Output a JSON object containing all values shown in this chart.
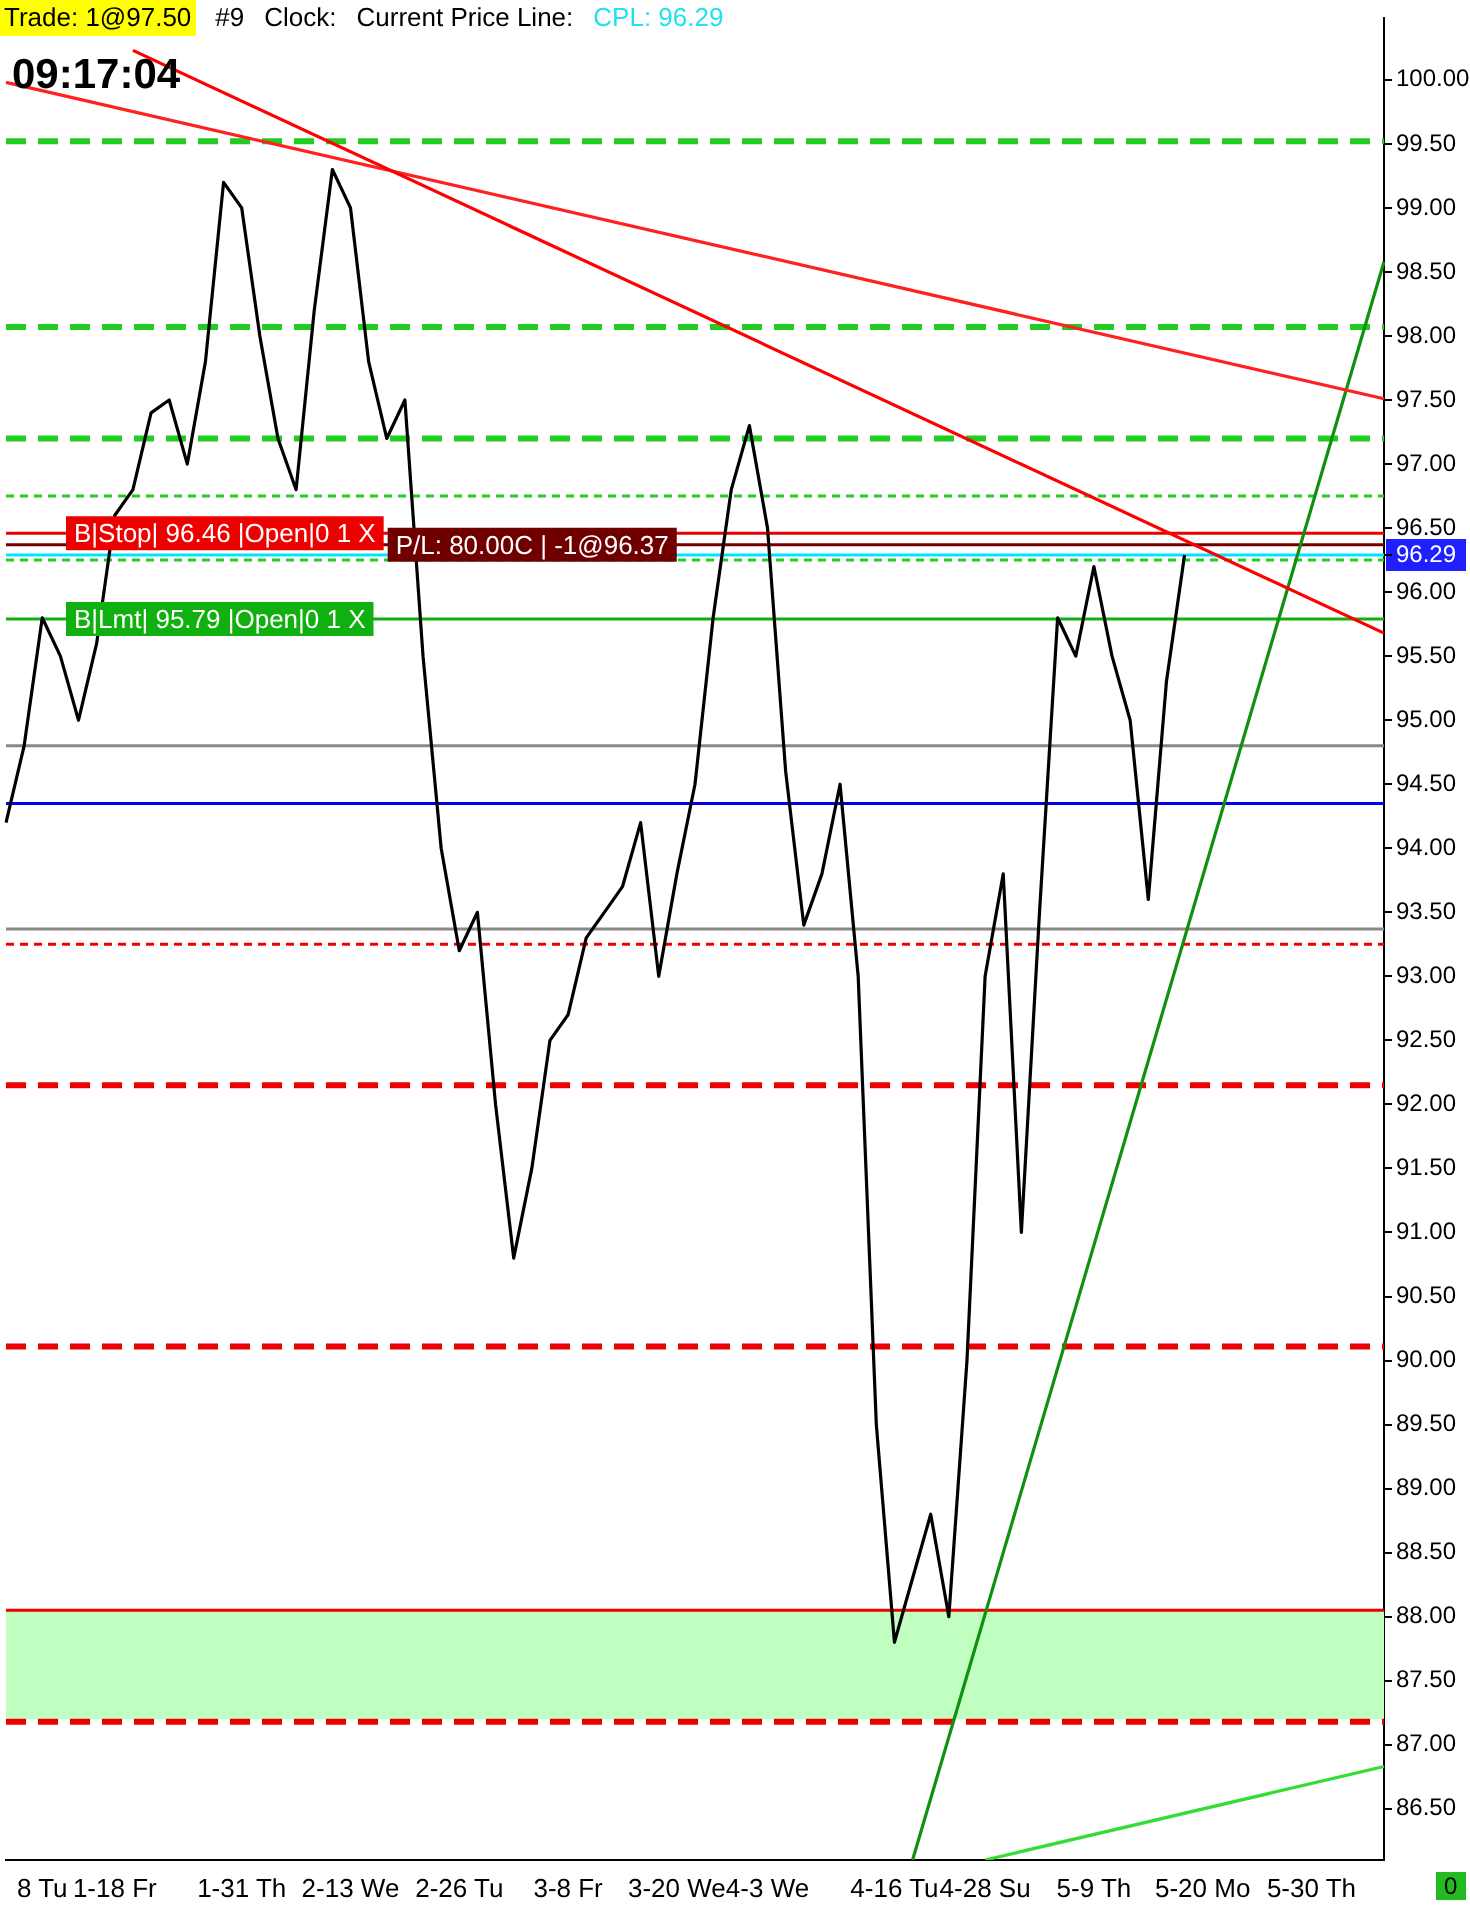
{
  "chart_data": {
    "type": "line",
    "annotations": [
      "Trade: 1@97.50",
      "#9",
      "Clock:",
      "Current Price Line:",
      "CPL: 96.29",
      "09:17:04",
      "0"
    ],
    "categories": [
      null,
      null,
      "8 Tu",
      null,
      null,
      null,
      "1-18 Fr",
      null,
      null,
      null,
      null,
      null,
      null,
      "1-31 Th",
      null,
      null,
      null,
      null,
      null,
      "2-13 We",
      null,
      null,
      null,
      null,
      null,
      "2-26 Tu",
      null,
      null,
      null,
      null,
      null,
      "3-8 Fr",
      null,
      null,
      null,
      null,
      null,
      "3-20 We",
      null,
      null,
      null,
      null,
      "4-3 We",
      null,
      null,
      null,
      null,
      null,
      null,
      "4-16 Tu",
      null,
      null,
      null,
      null,
      "4-28 Su",
      null,
      null,
      null,
      null,
      null,
      "5-9 Th",
      null,
      null,
      null,
      null,
      null,
      "5-20 Mo",
      null,
      null,
      null,
      null,
      null,
      "5-30 Th",
      null,
      null,
      null,
      null
    ],
    "series": [
      {
        "color": "#000000",
        "values": [
          94.2,
          94.8,
          95.8,
          95.5,
          95.0,
          95.6,
          96.6,
          96.8,
          97.4,
          97.5,
          97.0,
          97.8,
          99.2,
          99.0,
          98.0,
          97.2,
          96.8,
          98.2,
          99.3,
          99.0,
          97.8,
          97.2,
          97.5,
          95.5,
          94.0,
          93.2,
          93.5,
          92.0,
          90.8,
          91.5,
          92.5,
          92.7,
          93.3,
          93.5,
          93.7,
          94.2,
          93.0,
          93.8,
          94.5,
          95.8,
          96.8,
          97.3,
          96.5,
          94.6,
          93.4,
          93.8,
          94.5,
          93.0,
          89.5,
          87.8,
          88.3,
          88.8,
          88.0,
          90.0,
          93.0,
          93.8,
          91.0,
          93.5,
          95.8,
          95.5,
          96.2,
          95.5,
          95.0,
          93.6,
          95.3,
          96.29,
          null,
          null,
          null,
          null,
          null,
          null,
          null,
          null,
          null,
          null,
          null
        ]
      },
      {
        "type": "line",
        "color": "#ff0000",
        "values": [
          null,
          null,
          null,
          null,
          null,
          null,
          null,
          100.23,
          null,
          null,
          null,
          null,
          null,
          null,
          null,
          null,
          null,
          null,
          null,
          null,
          null,
          null,
          null,
          null,
          null,
          null,
          null,
          null,
          null,
          null,
          null,
          null,
          null,
          null,
          null,
          null,
          null,
          null,
          null,
          null,
          null,
          null,
          null,
          null,
          null,
          null,
          null,
          null,
          null,
          null,
          null,
          null,
          null,
          null,
          null,
          null,
          null,
          null,
          null,
          null,
          null,
          null,
          null,
          null,
          null,
          null,
          null,
          null,
          null,
          null,
          null,
          null,
          null,
          null,
          null,
          null,
          95.68
        ]
      },
      {
        "type": "line",
        "color": "#ff2020",
        "values": [
          99.98,
          null,
          null,
          null,
          null,
          null,
          null,
          null,
          null,
          null,
          null,
          null,
          null,
          null,
          null,
          null,
          null,
          null,
          null,
          null,
          null,
          null,
          null,
          null,
          null,
          null,
          null,
          null,
          null,
          null,
          null,
          null,
          null,
          null,
          null,
          null,
          null,
          null,
          null,
          null,
          null,
          null,
          null,
          null,
          null,
          null,
          null,
          null,
          null,
          null,
          null,
          null,
          null,
          null,
          null,
          null,
          null,
          null,
          null,
          null,
          null,
          null,
          null,
          null,
          null,
          null,
          null,
          null,
          null,
          null,
          null,
          null,
          null,
          null,
          null,
          null,
          97.51
        ]
      },
      {
        "type": "line",
        "color": "#109010",
        "values": [
          null,
          null,
          null,
          null,
          null,
          null,
          null,
          null,
          null,
          null,
          null,
          null,
          null,
          null,
          null,
          null,
          null,
          null,
          null,
          null,
          null,
          null,
          null,
          null,
          null,
          null,
          null,
          null,
          null,
          null,
          null,
          null,
          null,
          null,
          null,
          null,
          null,
          null,
          null,
          null,
          null,
          null,
          null,
          null,
          null,
          null,
          null,
          null,
          null,
          null,
          86.1,
          null,
          null,
          null,
          null,
          null,
          null,
          null,
          null,
          null,
          null,
          null,
          null,
          null,
          null,
          null,
          null,
          null,
          null,
          null,
          null,
          null,
          null,
          null,
          null,
          null,
          98.58
        ]
      },
      {
        "type": "line",
        "color": "#33dd33",
        "values": [
          null,
          null,
          null,
          null,
          null,
          null,
          null,
          null,
          null,
          null,
          null,
          null,
          null,
          null,
          null,
          null,
          null,
          null,
          null,
          null,
          null,
          null,
          null,
          null,
          null,
          null,
          null,
          null,
          null,
          null,
          null,
          null,
          null,
          null,
          null,
          null,
          null,
          null,
          null,
          null,
          null,
          null,
          null,
          null,
          null,
          null,
          null,
          null,
          null,
          null,
          null,
          null,
          null,
          null,
          86.1,
          null,
          null,
          null,
          null,
          null,
          null,
          null,
          null,
          null,
          null,
          null,
          null,
          null,
          null,
          null,
          null,
          null,
          null,
          null,
          null,
          null,
          86.83
        ]
      }
    ],
    "ylim": [
      86.1,
      100.48
    ],
    "yticks": [
      {
        "value": 86.5,
        "label": "86.50"
      },
      {
        "value": 87,
        "label": "87.00"
      },
      {
        "value": 87.5,
        "label": "87.50"
      },
      {
        "value": 88,
        "label": "88.00"
      },
      {
        "value": 88.5,
        "label": "88.50"
      },
      {
        "value": 89,
        "label": "89.00"
      },
      {
        "value": 89.5,
        "label": "89.50"
      },
      {
        "value": 90,
        "label": "90.00"
      },
      {
        "value": 90.5,
        "label": "90.50"
      },
      {
        "value": 91,
        "label": "91.00"
      },
      {
        "value": 91.5,
        "label": "91.50"
      },
      {
        "value": 92,
        "label": "92.00"
      },
      {
        "value": 92.5,
        "label": "92.50"
      },
      {
        "value": 93,
        "label": "93.00"
      },
      {
        "value": 93.5,
        "label": "93.50"
      },
      {
        "value": 94,
        "label": "94.00"
      },
      {
        "value": 94.5,
        "label": "94.50"
      },
      {
        "value": 95,
        "label": "95.00"
      },
      {
        "value": 95.5,
        "label": "95.50"
      },
      {
        "value": 96,
        "label": "96.00"
      },
      {
        "value": 96.29,
        "label": "96.29"
      },
      {
        "value": 96.5,
        "label": "96.50"
      },
      {
        "value": 97,
        "label": "97.00"
      },
      {
        "value": 97.5,
        "label": "97.50"
      },
      {
        "value": 98,
        "label": "98.00"
      },
      {
        "value": 98.5,
        "label": "98.50"
      },
      {
        "value": 99,
        "label": "99.00"
      },
      {
        "value": 99.5,
        "label": "99.50"
      },
      {
        "value": 100,
        "label": "100.00"
      }
    ],
    "bands": [
      {
        "axis": "y",
        "from": 87.2,
        "to": 88.05,
        "color": "#c0ffc0"
      }
    ],
    "ref_lines": [
      {
        "axis": "y",
        "value": 99.52,
        "color": "#22cc22",
        "line_style": "dashed"
      },
      {
        "axis": "y",
        "value": 98.07,
        "color": "#22cc22",
        "line_style": "dashed"
      },
      {
        "axis": "y",
        "value": 97.2,
        "color": "#22cc22",
        "line_style": "dashed"
      },
      {
        "axis": "y",
        "value": 96.75,
        "color": "#22cc22",
        "line_style": "dotted"
      },
      {
        "axis": "y",
        "value": 96.25,
        "color": "#22cc22",
        "line_style": "dotted"
      },
      {
        "axis": "y",
        "value": 96.46,
        "color": "#ee0000",
        "line_style": "solid",
        "label": "B|Stop| 96.46 |Open|0 1 X"
      },
      {
        "axis": "y",
        "value": 96.37,
        "color": "#700000",
        "line_style": "solid",
        "label": "P/L: 80.00C | -1@96.37"
      },
      {
        "axis": "y",
        "value": 96.29,
        "color": "#00e5ff",
        "line_style": "solid"
      },
      {
        "axis": "y",
        "value": 95.79,
        "color": "#10b010",
        "line_style": "solid",
        "label": "B|Lmt| 95.79 |Open|0 1 X"
      },
      {
        "axis": "y",
        "value": 94.8,
        "color": "#888888",
        "line_style": "solid"
      },
      {
        "axis": "y",
        "value": 94.35,
        "color": "#0000ee",
        "line_style": "solid"
      },
      {
        "axis": "y",
        "value": 93.37,
        "color": "#888888",
        "line_style": "solid"
      },
      {
        "axis": "y",
        "value": 93.25,
        "color": "#ee0000",
        "line_style": "dotted"
      },
      {
        "axis": "y",
        "value": 92.15,
        "color": "#ee0000",
        "line_style": "dashed"
      },
      {
        "axis": "y",
        "value": 90.11,
        "color": "#ee0000",
        "line_style": "dashed"
      },
      {
        "axis": "y",
        "value": 88.05,
        "color": "#ee0000",
        "line_style": "solid"
      },
      {
        "axis": "y",
        "value": 87.18,
        "color": "#ee0000",
        "line_style": "dashed"
      }
    ],
    "grid": false,
    "legend": false,
    "marker": "none",
    "line_style": "solid"
  }
}
